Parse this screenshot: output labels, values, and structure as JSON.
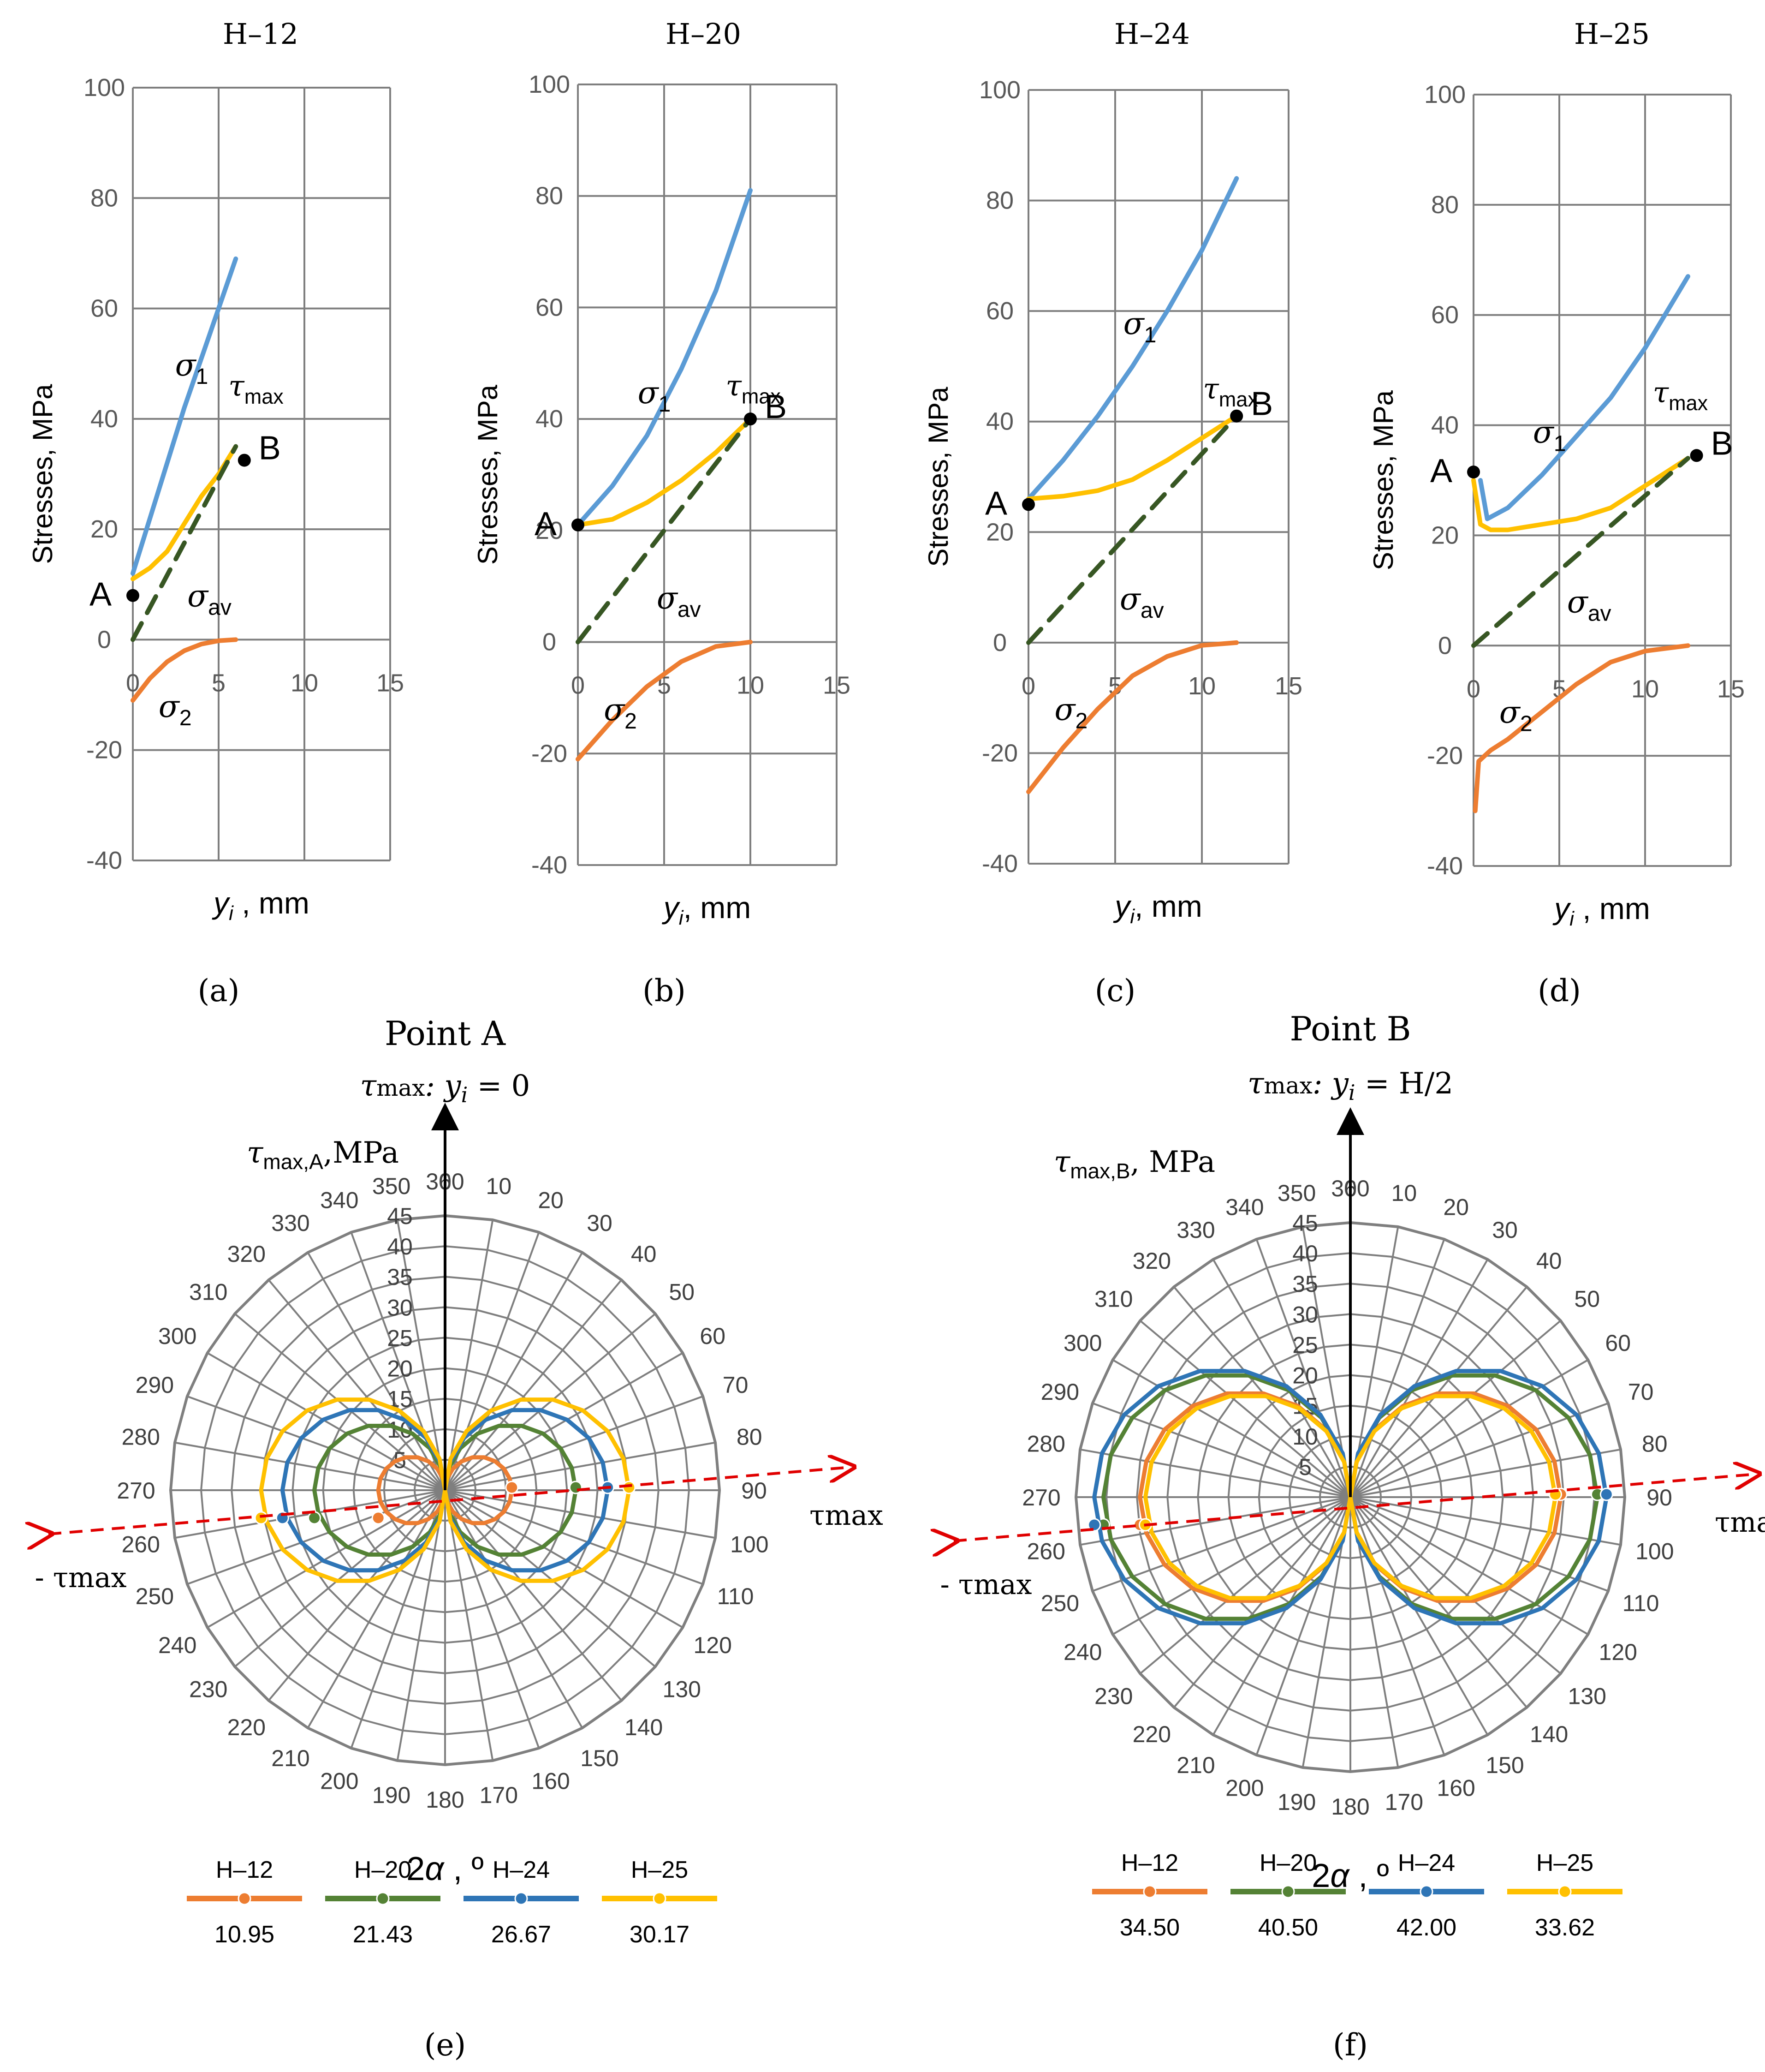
{
  "colors": {
    "H12": "#ED7D31",
    "H20": "#548235",
    "H24": "#2E75B6",
    "H25": "#FFC000",
    "sigma1": "#5B9BD5",
    "sigma2": "#ED7D31",
    "tau": "#FFC000",
    "sigma_av": "#375623",
    "grid": "#7F7F7F",
    "arrow_red": "#E00000"
  },
  "chart_data": [
    {
      "id": "a",
      "panel_label": "(a)",
      "type": "line",
      "title": "H–12",
      "ylabel": "Stresses, MPa",
      "xlabel_var": "y",
      "xlabel_sub": "i",
      "xlabel_unit": " , mm",
      "xlim": [
        0,
        15
      ],
      "ylim": [
        -40,
        100
      ],
      "xticks": [
        "0",
        "5",
        "10",
        "15"
      ],
      "yticks": [
        "100",
        "80",
        "60",
        "40",
        "20",
        "0",
        "-20",
        "-40"
      ],
      "series": [
        {
          "name": "sigma1",
          "x": [
            0,
            1,
            2,
            3,
            4,
            5,
            6
          ],
          "y": [
            12,
            22,
            32,
            42,
            51,
            60,
            69
          ]
        },
        {
          "name": "tau_max",
          "x": [
            0,
            1,
            2,
            3,
            4,
            5,
            6
          ],
          "y": [
            11,
            13,
            16,
            21,
            26,
            30,
            35
          ]
        },
        {
          "name": "sigma_av",
          "x": [
            0,
            6
          ],
          "y": [
            0,
            35
          ]
        },
        {
          "name": "sigma2",
          "x": [
            0,
            1,
            2,
            3,
            4,
            5,
            6
          ],
          "y": [
            -11,
            -7,
            -4,
            -2,
            -0.8,
            -0.2,
            0
          ]
        }
      ],
      "labels": {
        "s1_base": "σ",
        "s1_sub": "1",
        "tau_base": "τ",
        "tau_sub": "max",
        "av_base": "σ",
        "av_sub": "av",
        "s2_base": "σ",
        "s2_sub": "2",
        "point_a": "A",
        "point_b": "B"
      }
    },
    {
      "id": "b",
      "panel_label": "(b)",
      "type": "line",
      "title": "H–20",
      "ylabel": "Stresses, MPa",
      "xlabel_var": "y",
      "xlabel_sub": "i",
      "xlabel_unit": ", mm",
      "xlim": [
        0,
        15
      ],
      "ylim": [
        -40,
        100
      ],
      "xticks": [
        "0",
        "5",
        "10",
        "15"
      ],
      "yticks": [
        "100",
        "80",
        "60",
        "40",
        "20",
        "0",
        "-20",
        "-40"
      ],
      "series": [
        {
          "name": "sigma1",
          "x": [
            0,
            2,
            4,
            6,
            8,
            10
          ],
          "y": [
            21,
            28,
            37,
            49,
            63,
            81
          ]
        },
        {
          "name": "tau_max",
          "x": [
            0,
            2,
            4,
            6,
            8,
            10
          ],
          "y": [
            21,
            22,
            25,
            29,
            34,
            40
          ]
        },
        {
          "name": "sigma_av",
          "x": [
            0,
            10
          ],
          "y": [
            0,
            40
          ]
        },
        {
          "name": "sigma2",
          "x": [
            0,
            2,
            4,
            6,
            8,
            10
          ],
          "y": [
            -21,
            -14,
            -8,
            -3.5,
            -0.8,
            0
          ]
        }
      ],
      "labels": {
        "s1_base": "σ",
        "s1_sub": "1",
        "tau_base": "τ",
        "tau_sub": "max",
        "av_base": "σ",
        "av_sub": "av",
        "s2_base": "σ",
        "s2_sub": "2",
        "point_a": "A",
        "point_b": "B"
      }
    },
    {
      "id": "c",
      "panel_label": "(c)",
      "type": "line",
      "title": "H–24",
      "ylabel": "Stresses,  MPa",
      "xlabel_var": "y",
      "xlabel_sub": "i",
      "xlabel_unit": ", mm",
      "xlim": [
        0,
        15
      ],
      "ylim": [
        -40,
        100
      ],
      "xticks": [
        "0",
        "5",
        "10",
        "15"
      ],
      "yticks": [
        "100",
        "80",
        "60",
        "40",
        "20",
        "0",
        "-20",
        "-40"
      ],
      "series": [
        {
          "name": "sigma1",
          "x": [
            0,
            2,
            4,
            6,
            8,
            10,
            12
          ],
          "y": [
            26,
            33,
            41,
            50,
            60,
            71,
            84
          ]
        },
        {
          "name": "tau_max",
          "x": [
            0,
            2,
            4,
            6,
            8,
            10,
            12
          ],
          "y": [
            26,
            26.5,
            27.5,
            29.5,
            33,
            37,
            41
          ]
        },
        {
          "name": "sigma_av",
          "x": [
            0,
            12
          ],
          "y": [
            0,
            41
          ]
        },
        {
          "name": "sigma2",
          "x": [
            0,
            2,
            4,
            6,
            8,
            10,
            12
          ],
          "y": [
            -27,
            -19,
            -12,
            -6,
            -2.5,
            -0.5,
            0
          ]
        }
      ],
      "labels": {
        "s1_base": "σ",
        "s1_sub": "1",
        "tau_base": "τ",
        "tau_sub": "max",
        "av_base": "σ",
        "av_sub": "av",
        "s2_base": "σ",
        "s2_sub": "2",
        "point_a": "A",
        "point_b": "B"
      }
    },
    {
      "id": "d",
      "panel_label": "(d)",
      "type": "line",
      "title": "H–25",
      "ylabel": "Stresses,  MPa",
      "xlabel_var": "y",
      "xlabel_sub": "i",
      "xlabel_unit": " , mm",
      "xlim": [
        0,
        15
      ],
      "ylim": [
        -40,
        100
      ],
      "xticks": [
        "0",
        "5",
        "10",
        "15"
      ],
      "yticks": [
        "100",
        "80",
        "60",
        "40",
        "20",
        "0",
        "-20",
        "-40"
      ],
      "series": [
        {
          "name": "sigma1",
          "x": [
            0.4,
            0.8,
            2,
            4,
            6,
            8,
            10,
            12.5
          ],
          "y": [
            30,
            23,
            25,
            31,
            38,
            45,
            54,
            67
          ]
        },
        {
          "name": "tau_max",
          "x": [
            0,
            0.4,
            1,
            2,
            4,
            6,
            8,
            10,
            12.5
          ],
          "y": [
            30,
            22,
            21,
            21,
            22,
            23,
            25,
            29,
            34
          ]
        },
        {
          "name": "sigma_av",
          "x": [
            0,
            12.5
          ],
          "y": [
            0,
            34
          ]
        },
        {
          "name": "sigma2",
          "x": [
            0.1,
            0.3,
            1,
            2,
            4,
            6,
            8,
            10,
            12.5
          ],
          "y": [
            -30,
            -21,
            -19,
            -17,
            -12,
            -7,
            -3,
            -1,
            0
          ]
        }
      ],
      "labels": {
        "s1_base": "σ",
        "s1_sub": "1",
        "tau_base": "τ",
        "tau_sub": "max",
        "av_base": "σ",
        "av_sub": "av",
        "s2_base": "σ",
        "s2_sub": "2",
        "point_a": "A",
        "point_b": "B"
      }
    },
    {
      "id": "e",
      "panel_label": "(e)",
      "type": "polar",
      "title": "Point A",
      "subtitle_pre": "τ",
      "subtitle_mid": "max",
      "subtitle_post": ": y",
      "subtitle_sub": "i",
      "subtitle_end": " = 0",
      "axis_label_base": "τ",
      "axis_label_sub": "max,A",
      "axis_label_unit": ",MPa",
      "rmax": 45,
      "rticks": [
        "5",
        "10",
        "15",
        "20",
        "25",
        "30",
        "35",
        "40",
        "45"
      ],
      "angle_ticks": [
        "0",
        "10",
        "20",
        "30",
        "40",
        "50",
        "60",
        "70",
        "80",
        "90",
        "100",
        "110",
        "120",
        "130",
        "140",
        "150",
        "160",
        "170",
        "180",
        "190",
        "200",
        "210",
        "220",
        "230",
        "240",
        "250",
        "260",
        "270",
        "280",
        "290",
        "300",
        "310",
        "320",
        "330",
        "340",
        "350",
        "360"
      ],
      "angle_label_base": "2",
      "angle_label_var": "α",
      "angle_label_unit": " , º",
      "tau_pos": "τmax",
      "tau_neg": "- τmax",
      "series": [
        {
          "name": "H–12",
          "value": 10.95,
          "value_label": "10.95"
        },
        {
          "name": "H–20",
          "value": 21.43,
          "value_label": "21.43"
        },
        {
          "name": "H–24",
          "value": 26.67,
          "value_label": "26.67"
        },
        {
          "name": "H–25",
          "value": 30.17,
          "value_label": "30.17"
        }
      ]
    },
    {
      "id": "f",
      "panel_label": "(f)",
      "type": "polar",
      "title": "Point B",
      "subtitle_pre": "τ",
      "subtitle_mid": "max",
      "subtitle_post": ": y",
      "subtitle_sub": "i",
      "subtitle_end": " = H/2",
      "axis_label_base": "τ",
      "axis_label_sub": "max,B",
      "axis_label_unit": ",  MPa",
      "rmax": 45,
      "rticks": [
        "5",
        "10",
        "15",
        "20",
        "25",
        "30",
        "35",
        "40",
        "45"
      ],
      "angle_ticks": [
        "0",
        "10",
        "20",
        "30",
        "40",
        "50",
        "60",
        "70",
        "80",
        "90",
        "100",
        "110",
        "120",
        "130",
        "140",
        "150",
        "160",
        "170",
        "180",
        "190",
        "200",
        "210",
        "220",
        "230",
        "240",
        "250",
        "260",
        "270",
        "280",
        "290",
        "300",
        "310",
        "320",
        "330",
        "340",
        "350",
        "360"
      ],
      "angle_label_base": "2",
      "angle_label_var": "α",
      "angle_label_unit": " , º",
      "tau_pos": "τmax",
      "tau_neg": "- τmax",
      "series": [
        {
          "name": "H–12",
          "value": 34.5,
          "value_label": "34.50"
        },
        {
          "name": "H–20",
          "value": 40.5,
          "value_label": "40.50"
        },
        {
          "name": "H–24",
          "value": 42.0,
          "value_label": "42.00"
        },
        {
          "name": "H–25",
          "value": 33.62,
          "value_label": "33.62"
        }
      ]
    }
  ]
}
